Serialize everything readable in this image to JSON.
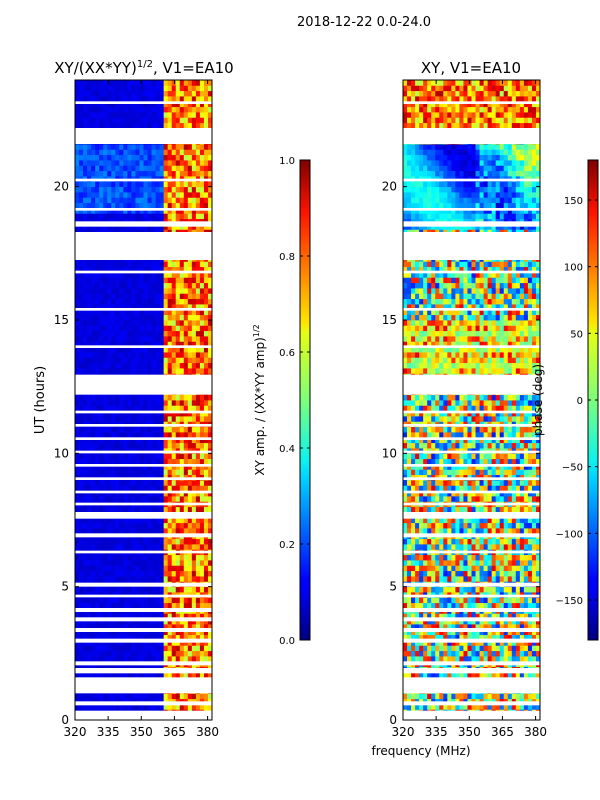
{
  "chart_data": {
    "suptitle": "2018-12-22 0.0-24.0",
    "shared_xlabel": "frequency (MHz)",
    "panels": [
      {
        "type": "heatmap",
        "title_main": "XY/(XX*YY)",
        "title_exp": "1/2",
        "title_rest": ", V1=EA10",
        "ylabel": "UT (hours)",
        "xlim": [
          320,
          382
        ],
        "ylim": [
          0,
          24
        ],
        "xticks": [
          "320",
          "335",
          "350",
          "365",
          "380"
        ],
        "xtick_values": [
          320,
          335,
          350,
          365,
          380
        ],
        "yticks": [
          "0",
          "5",
          "10",
          "15",
          "20"
        ],
        "ytick_values": [
          0,
          5,
          10,
          15,
          20
        ],
        "quantity": "amplitude",
        "colorbar": {
          "label": "XY amp. / (XX*YY amp)",
          "label_exp": "1/2",
          "range": [
            0.0,
            1.0
          ],
          "ticks": [
            "0.0",
            "0.2",
            "0.4",
            "0.6",
            "0.8",
            "1.0"
          ],
          "tick_values": [
            0.0,
            0.2,
            0.4,
            0.6,
            0.8,
            1.0
          ]
        }
      },
      {
        "type": "heatmap",
        "title_main": "XY, V1=EA10",
        "xlim": [
          320,
          382
        ],
        "ylim": [
          0,
          24
        ],
        "xticks": [
          "320",
          "335",
          "350",
          "365",
          "380"
        ],
        "xtick_values": [
          320,
          335,
          350,
          365,
          380
        ],
        "yticks": [
          "0",
          "5",
          "10",
          "15",
          "20"
        ],
        "ytick_values": [
          0,
          5,
          10,
          15,
          20
        ],
        "quantity": "phase",
        "colorbar": {
          "label": "phase (deg)",
          "range": [
            -180,
            180
          ],
          "ticks": [
            "−150",
            "−100",
            "−50",
            "0",
            "50",
            "100",
            "150"
          ],
          "tick_values": [
            -150,
            -100,
            -50,
            0,
            50,
            100,
            150
          ]
        }
      }
    ],
    "flagged_time_ranges_hours": [
      [
        0.0,
        0.35
      ],
      [
        0.55,
        0.7
      ],
      [
        1.0,
        1.6
      ],
      [
        1.75,
        1.95
      ],
      [
        2.05,
        2.2
      ],
      [
        2.9,
        3.05
      ],
      [
        3.3,
        3.45
      ],
      [
        3.7,
        3.85
      ],
      [
        4.05,
        4.2
      ],
      [
        4.6,
        4.7
      ],
      [
        5.0,
        5.15
      ],
      [
        6.25,
        6.35
      ],
      [
        6.85,
        7.0
      ],
      [
        7.55,
        7.8
      ],
      [
        8.05,
        8.15
      ],
      [
        8.5,
        8.6
      ],
      [
        9.0,
        9.1
      ],
      [
        9.5,
        9.6
      ],
      [
        10.0,
        10.1
      ],
      [
        10.5,
        10.6
      ],
      [
        11.0,
        11.1
      ],
      [
        11.5,
        11.6
      ],
      [
        12.2,
        12.95
      ],
      [
        13.95,
        14.05
      ],
      [
        15.35,
        15.45
      ],
      [
        16.75,
        16.85
      ],
      [
        17.25,
        18.3
      ],
      [
        18.5,
        18.7
      ],
      [
        19.1,
        19.2
      ],
      [
        20.2,
        20.3
      ],
      [
        21.6,
        22.2
      ],
      [
        23.1,
        23.2
      ]
    ]
  }
}
